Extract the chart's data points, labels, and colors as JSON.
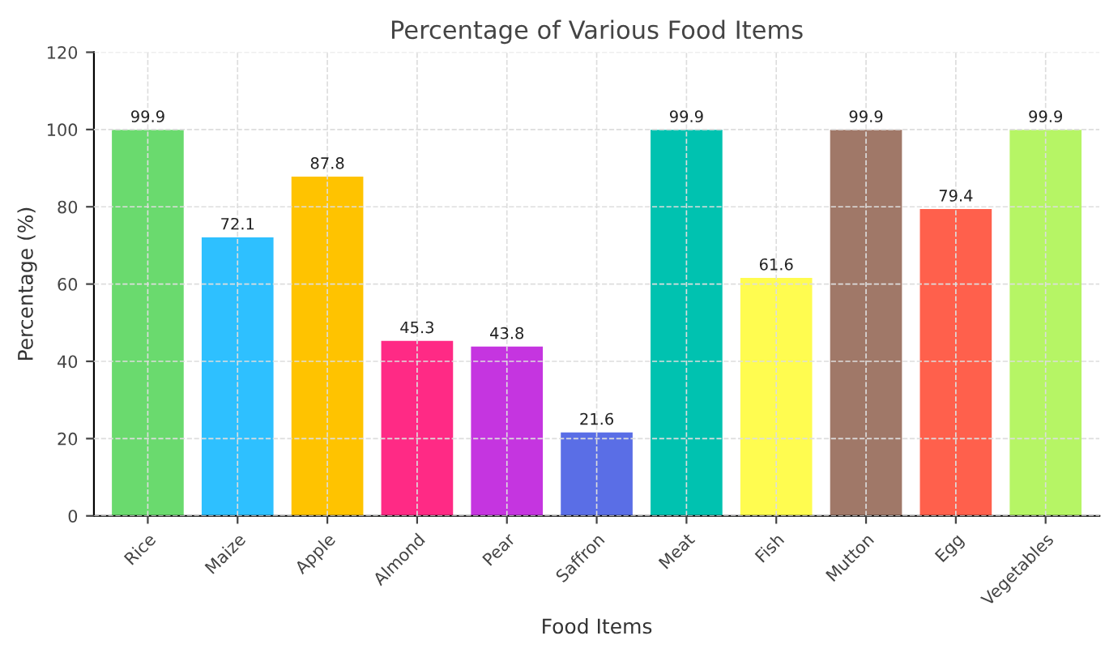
{
  "chart_data": {
    "type": "bar",
    "title": "Percentage of Various Food Items",
    "xlabel": "Food Items",
    "ylabel": "Percentage (%)",
    "categories": [
      "Rice",
      "Maize",
      "Apple",
      "Almond",
      "Pear",
      "Saffron",
      "Meat",
      "Fish",
      "Mutton",
      "Egg",
      "Vegetables"
    ],
    "values": [
      99.9,
      72.1,
      87.8,
      45.3,
      43.8,
      21.6,
      99.9,
      61.6,
      99.9,
      79.4,
      99.9
    ],
    "colors": [
      "#6ada6e",
      "#2ec0ff",
      "#ffc300",
      "#ff2a85",
      "#c535e0",
      "#5a6ee6",
      "#00c2b0",
      "#fffc50",
      "#a07868",
      "#ff604c",
      "#b6f565"
    ],
    "ylim": [
      0,
      120
    ],
    "yticks": [
      0,
      20,
      40,
      60,
      80,
      100,
      120
    ],
    "grid": true,
    "data_labels": true
  }
}
